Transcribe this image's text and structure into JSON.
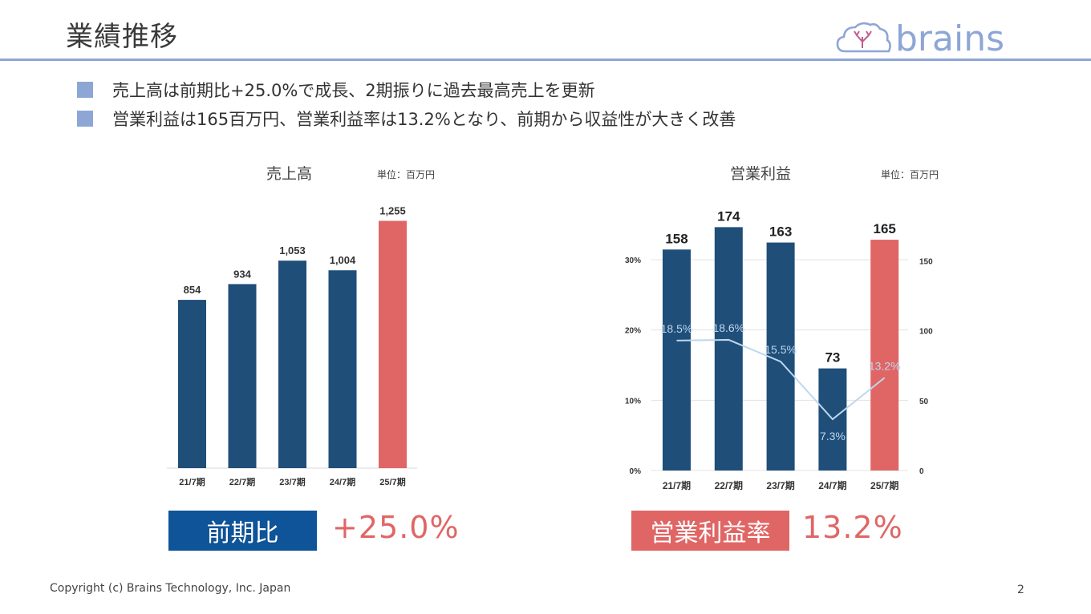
{
  "slide": {
    "title": "業績推移",
    "bullets": [
      "売上高は前期比+25.0%で成長、2期振りに過去最高売上を更新",
      "営業利益は165百万円、営業利益率は13.2%となり、前期から収益性が大きく改善"
    ],
    "footer": "Copyright (c) Brains Technology, Inc. Japan",
    "page_number": "2",
    "logo_text": "brains"
  },
  "colors": {
    "bar": "#1f4e79",
    "highlight": "#e06666",
    "line": "#bdd7ee",
    "accent": "#8ea6d6",
    "badge_blue": "#0f5398"
  },
  "summary": {
    "left_badge": "前期比",
    "left_value": "+25.0%",
    "right_badge": "営業利益率",
    "right_value": "13.2%"
  },
  "chart_data": [
    {
      "type": "bar",
      "title": "売上高",
      "unit": "単位：百万円",
      "categories": [
        "21/7期",
        "22/7期",
        "23/7期",
        "24/7期",
        "25/7期"
      ],
      "values": [
        854,
        934,
        1053,
        1004,
        1255
      ],
      "value_labels": [
        "854",
        "934",
        "1,053",
        "1,004",
        "1,255"
      ],
      "highlight_index": 4,
      "ylim": [
        0,
        1400
      ]
    },
    {
      "type": "bar",
      "title": "営業利益",
      "unit": "単位：百万円",
      "categories": [
        "21/7期",
        "22/7期",
        "23/7期",
        "24/7期",
        "25/7期"
      ],
      "series": [
        {
          "values": [
            158,
            174,
            163,
            73,
            165
          ],
          "value_labels": [
            "158",
            "174",
            "163",
            "73",
            "165"
          ]
        },
        {
          "type": "line",
          "values": [
            18.5,
            18.6,
            15.5,
            7.3,
            13.2
          ],
          "value_labels": [
            "18.5%",
            "18.6%",
            "15.5%",
            "7.3%",
            "13.2%"
          ]
        }
      ],
      "highlight_index": 4,
      "y_right": {
        "ticks": [
          "0",
          "50",
          "100",
          "150"
        ],
        "lim": [
          0,
          150
        ]
      },
      "y_left": {
        "ticks": [
          "0%",
          "10%",
          "20%",
          "30%"
        ],
        "lim": [
          0,
          30
        ]
      },
      "grid": true
    }
  ]
}
